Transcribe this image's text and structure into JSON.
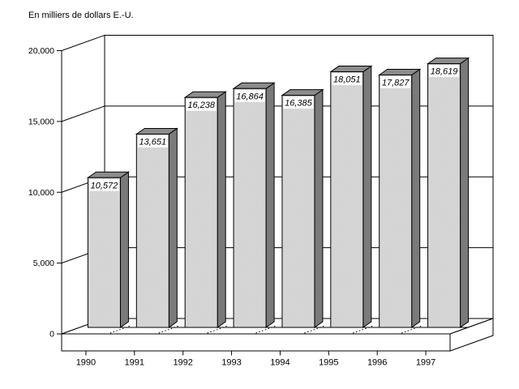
{
  "chart_data": {
    "type": "bar",
    "projection": "3d-oblique",
    "title": "En milliers de dollars E.-U.",
    "categories": [
      "1990",
      "1991",
      "1992",
      "1993",
      "1994",
      "1995",
      "1996",
      "1997"
    ],
    "values": [
      10572,
      13651,
      16238,
      16864,
      16385,
      18051,
      17827,
      18619
    ],
    "value_labels": [
      "10,572",
      "13,651",
      "16,238",
      "16,864",
      "16,385",
      "18,051",
      "17,827",
      "18,619"
    ],
    "xlabel": "",
    "ylabel": "",
    "ylim": [
      0,
      20000
    ],
    "ytick_step": 5000,
    "ytick_labels": [
      "0",
      "5,000",
      "10,000",
      "15,000",
      "20,000"
    ],
    "grid": "horizontal-on-back-wall",
    "legend": "none",
    "colors": {
      "background": "#ffffff",
      "outline": "#000000",
      "wall_fill": "#ffffff",
      "bar_front_dither_fg": "#aaaaaa",
      "bar_front_dither_bg": "#ffffff",
      "bar_side": "#7a7a7a",
      "bar_top": "#8c8c8c",
      "value_label_bg": "#ffffff",
      "text": "#000000"
    }
  }
}
